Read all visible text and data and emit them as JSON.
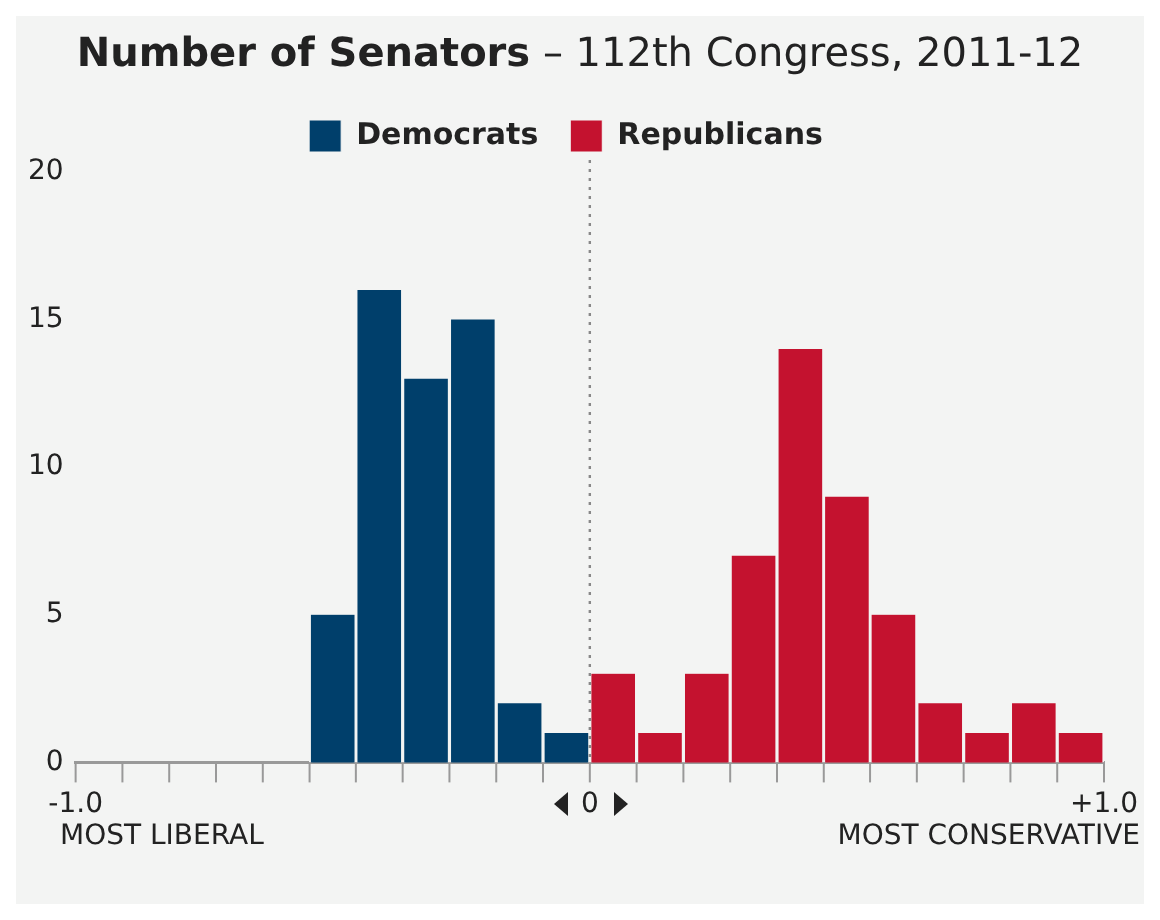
{
  "chart_data": {
    "type": "histogram",
    "title": "Number of Senators",
    "subtitle": "– 112th Congress, 2011-12",
    "bins": [
      -1,
      -0.909,
      -0.818,
      -0.727,
      -0.636,
      -0.545,
      -0.455,
      -0.364,
      -0.273,
      -0.182,
      -0.091,
      0,
      0.091,
      0.182,
      0.273,
      0.364,
      0.455,
      0.545,
      0.636,
      0.727,
      0.818,
      0.909,
      1
    ],
    "series": [
      {
        "name": "Democrats",
        "color": "#003f6b",
        "values": [
          0,
          0,
          0,
          0,
          0,
          5,
          16,
          13,
          15,
          2,
          1,
          0,
          0,
          0,
          0,
          0,
          0,
          0,
          0,
          0,
          0,
          0
        ]
      },
      {
        "name": "Republicans",
        "color": "#c4122f",
        "values": [
          0,
          0,
          0,
          0,
          0,
          0,
          0,
          0,
          0,
          0,
          0,
          3,
          1,
          3,
          7,
          14,
          9,
          5,
          2,
          1,
          2,
          1
        ]
      }
    ],
    "xlim": [
      -1,
      1
    ],
    "xticks": [
      {
        "value": -1,
        "label": "-1.0"
      },
      {
        "value": -0.909,
        "label": null
      },
      {
        "value": -0.818,
        "label": null
      },
      {
        "value": -0.727,
        "label": null
      },
      {
        "value": -0.636,
        "label": null
      },
      {
        "value": -0.545,
        "label": null
      },
      {
        "value": -0.455,
        "label": null
      },
      {
        "value": -0.364,
        "label": null
      },
      {
        "value": -0.273,
        "label": null
      },
      {
        "value": -0.182,
        "label": null
      },
      {
        "value": -0.091,
        "label": null
      },
      0,
      {
        "value": 0.091,
        "label": null
      },
      {
        "value": 0.182,
        "label": null
      },
      {
        "value": 0.273,
        "label": null
      },
      {
        "value": 0.364,
        "label": null
      },
      {
        "value": 0.455,
        "label": null
      },
      {
        "value": 0.545,
        "label": null
      },
      {
        "value": 0.636,
        "label": null
      },
      {
        "value": 0.727,
        "label": null
      },
      {
        "value": 0.818,
        "label": null
      },
      {
        "value": 0.909,
        "label": null
      },
      {
        "value": 1,
        "label": "+1.0"
      }
    ],
    "ylim": [
      0,
      20
    ],
    "yticks": [
      0,
      5,
      10,
      15,
      20
    ],
    "grid": false,
    "legend": "top",
    "ref_lines": [
      {
        "axis": "x",
        "value": 0,
        "color": "#888888",
        "line_style": "dotted"
      }
    ],
    "annotations": [
      "MOST LIBERAL",
      "MOST CONSERVATIVE"
    ]
  }
}
